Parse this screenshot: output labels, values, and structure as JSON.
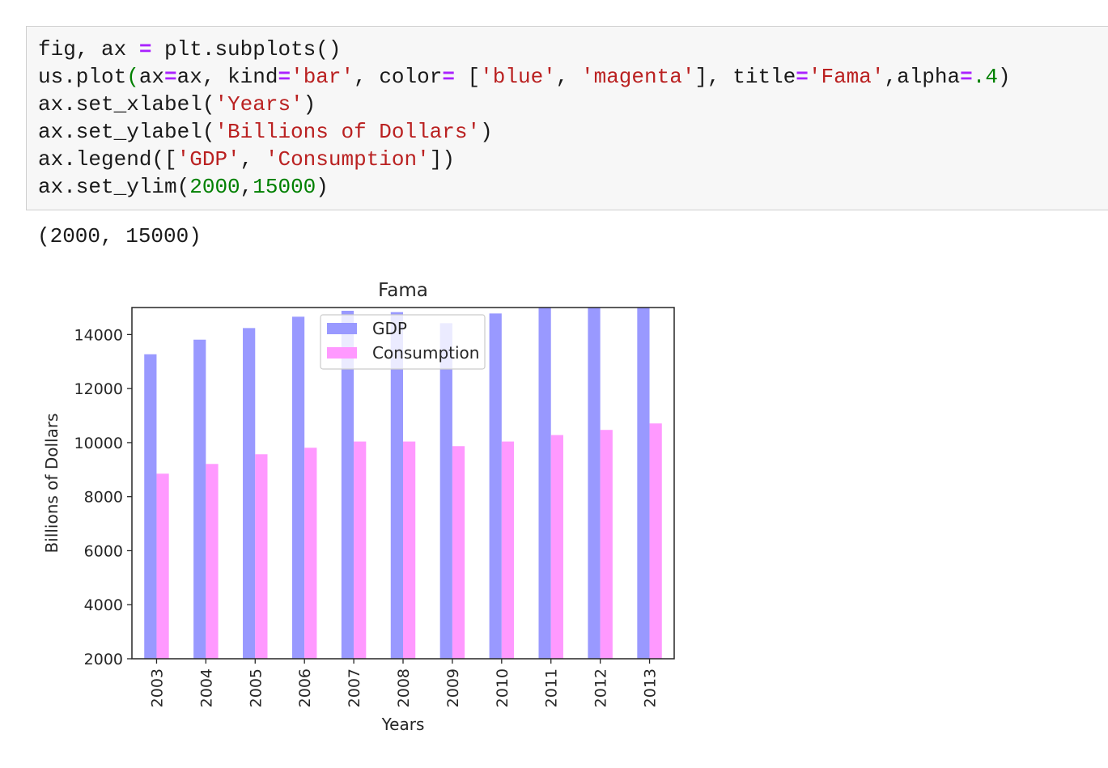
{
  "code_cell": {
    "lines": [
      [
        {
          "t": "fig, ax ",
          "c": ""
        },
        {
          "t": "=",
          "c": "op"
        },
        {
          "t": " plt.subplots()",
          "c": ""
        }
      ],
      [
        {
          "t": "us.plot",
          "c": ""
        },
        {
          "t": "(",
          "c": "num"
        },
        {
          "t": "ax",
          "c": ""
        },
        {
          "t": "=",
          "c": "op"
        },
        {
          "t": "ax, kind",
          "c": ""
        },
        {
          "t": "=",
          "c": "op"
        },
        {
          "t": "'bar'",
          "c": "str"
        },
        {
          "t": ", color",
          "c": ""
        },
        {
          "t": "=",
          "c": "op"
        },
        {
          "t": " [",
          "c": ""
        },
        {
          "t": "'blue'",
          "c": "str"
        },
        {
          "t": ", ",
          "c": ""
        },
        {
          "t": "'magenta'",
          "c": "str"
        },
        {
          "t": "], title",
          "c": ""
        },
        {
          "t": "=",
          "c": "op"
        },
        {
          "t": "'Fama'",
          "c": "str"
        },
        {
          "t": ",alpha",
          "c": ""
        },
        {
          "t": "=",
          "c": "op"
        },
        {
          "t": ".4",
          "c": "num"
        },
        {
          "t": ")",
          "c": ""
        }
      ],
      [
        {
          "t": "ax.set_xlabel(",
          "c": ""
        },
        {
          "t": "'Years'",
          "c": "str"
        },
        {
          "t": ")",
          "c": ""
        }
      ],
      [
        {
          "t": "ax.set_ylabel(",
          "c": ""
        },
        {
          "t": "'Billions of Dollars'",
          "c": "str"
        },
        {
          "t": ")",
          "c": ""
        }
      ],
      [
        {
          "t": "ax.legend([",
          "c": ""
        },
        {
          "t": "'GDP'",
          "c": "str"
        },
        {
          "t": ", ",
          "c": ""
        },
        {
          "t": "'Consumption'",
          "c": "str"
        },
        {
          "t": "])",
          "c": ""
        }
      ],
      [
        {
          "t": "ax.set_ylim(",
          "c": ""
        },
        {
          "t": "2000",
          "c": "num"
        },
        {
          "t": ",",
          "c": ""
        },
        {
          "t": "15000",
          "c": "num"
        },
        {
          "t": ")",
          "c": ""
        }
      ]
    ]
  },
  "output": {
    "text": "(2000, 15000)"
  },
  "colors": {
    "gdp_bar": "#9999ff",
    "consumption_bar": "#ff99ff",
    "axis": "#262626"
  },
  "chart_data": {
    "type": "bar",
    "title": "Fama",
    "xlabel": "Years",
    "ylabel": "Billions of Dollars",
    "ylim": [
      2000,
      15000
    ],
    "yticks": [
      2000,
      4000,
      6000,
      8000,
      10000,
      12000,
      14000
    ],
    "categories": [
      "2003",
      "2004",
      "2005",
      "2006",
      "2007",
      "2008",
      "2009",
      "2010",
      "2011",
      "2012",
      "2013"
    ],
    "series": [
      {
        "name": "GDP",
        "values": [
          13270,
          13810,
          14240,
          14660,
          14880,
          14830,
          14420,
          14780,
          15050,
          15360,
          15610
        ]
      },
      {
        "name": "Consumption",
        "values": [
          8850,
          9210,
          9570,
          9810,
          10040,
          10040,
          9870,
          10040,
          10280,
          10470,
          10710
        ]
      }
    ],
    "legend_position": "top-center",
    "grid": false
  }
}
